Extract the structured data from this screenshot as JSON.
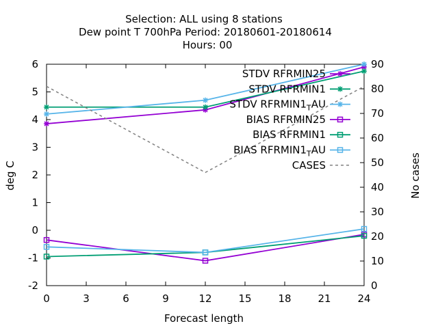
{
  "chart_data": {
    "type": "line",
    "title_lines": [
      "Selection: ALL using     8 stations",
      "Dew point T 700hPa   Period: 20180601-20180614",
      "Hours:  00"
    ],
    "xlabel": "Forecast length",
    "ylabel": "deg C",
    "y2label": "No cases",
    "x_ticks": [
      "0",
      "3",
      "6",
      "9",
      "12",
      "15",
      "18",
      "21",
      "24"
    ],
    "y_ticks": [
      "-2",
      "-1",
      "0",
      "1",
      "2",
      "3",
      "4",
      "5",
      "6"
    ],
    "y2_ticks": [
      "0",
      "10",
      "20",
      "30",
      "40",
      "50",
      "60",
      "70",
      "80",
      "90"
    ],
    "xlim": [
      0,
      24
    ],
    "ylim": [
      -2,
      6
    ],
    "y2lim": [
      0,
      90
    ],
    "legend_position": "top-right",
    "series": [
      {
        "name": "STDV RFRMIN25",
        "axis": "y",
        "color": "#9400d3",
        "marker": "star",
        "dash": false,
        "x": [
          0,
          12,
          24
        ],
        "y": [
          3.85,
          4.35,
          5.9
        ]
      },
      {
        "name": "STDV RFRMIN1",
        "axis": "y",
        "color": "#009e73",
        "marker": "star",
        "dash": false,
        "x": [
          0,
          12,
          24
        ],
        "y": [
          4.45,
          4.45,
          5.75
        ]
      },
      {
        "name": "STDV RFRMIN1_T AU",
        "name_main": "STDV RFRMIN1",
        "name_sub": "T",
        "name_tail": "AU",
        "axis": "y",
        "color": "#56b4e9",
        "marker": "star",
        "dash": false,
        "x": [
          0,
          12,
          24
        ],
        "y": [
          4.2,
          4.7,
          6.0
        ]
      },
      {
        "name": "BIAS RFRMIN25",
        "axis": "y",
        "color": "#9400d3",
        "marker": "square",
        "dash": false,
        "x": [
          0,
          12,
          24
        ],
        "y": [
          -0.35,
          -1.1,
          -0.15
        ]
      },
      {
        "name": "BIAS RFRMIN1",
        "axis": "y",
        "color": "#009e73",
        "marker": "square",
        "dash": false,
        "x": [
          0,
          12,
          24
        ],
        "y": [
          -0.95,
          -0.8,
          -0.2
        ]
      },
      {
        "name": "BIAS RFRMIN1_T AU",
        "name_main": "BIAS RFRMIN1",
        "name_sub": "T",
        "name_tail": "AU",
        "axis": "y",
        "color": "#56b4e9",
        "marker": "square",
        "dash": false,
        "x": [
          0,
          12,
          24
        ],
        "y": [
          -0.6,
          -0.8,
          0.05
        ]
      },
      {
        "name": "CASES",
        "axis": "y2",
        "color": "#808080",
        "marker": "none",
        "dash": true,
        "x": [
          0,
          12,
          24
        ],
        "y": [
          81,
          46,
          81
        ]
      }
    ]
  }
}
